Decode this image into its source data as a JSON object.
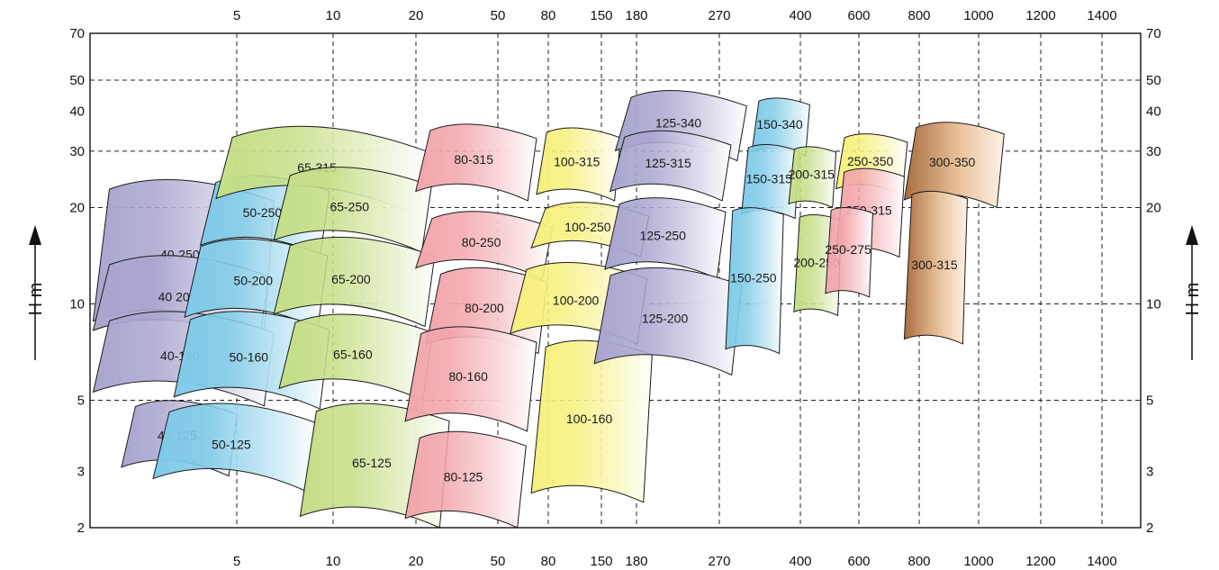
{
  "chart_data": {
    "type": "area",
    "y_axis_title": "H m",
    "x_tick_labels": [
      "5",
      "10",
      "20",
      "50",
      "80",
      "150",
      "180",
      "270",
      "400",
      "600",
      "800",
      "1000",
      "1200",
      "1400"
    ],
    "y_tick_labels": [
      "70",
      "50",
      "40",
      "30",
      "20",
      "10",
      "5",
      "3",
      "2"
    ],
    "y_scale": "log",
    "ylim": [
      2,
      70
    ],
    "grid": true,
    "colors": {
      "purple": "#a9a5cf",
      "blue": "#7fcbe8",
      "green": "#c5de86",
      "pink": "#f2a6ac",
      "yellow": "#f7f07c",
      "brown": "#a86d3f"
    },
    "regions": [
      {
        "label": "40-250",
        "color": "purple",
        "q": [
          0.3,
          17.5
        ],
        "h": [
          8.0,
          24.5
        ]
      },
      {
        "label": "40 200",
        "color": "purple",
        "q": [
          0.3,
          17.0
        ],
        "h": [
          7.5,
          14.2
        ]
      },
      {
        "label": "40-160",
        "color": "purple",
        "q": [
          0.3,
          17.5
        ],
        "h": [
          4.8,
          9.5
        ]
      },
      {
        "label": "40-125",
        "color": "purple",
        "q": [
          3.0,
          14.0
        ],
        "h": [
          2.9,
          5.0
        ]
      },
      {
        "label": "50-250",
        "color": "blue",
        "q": [
          10.5,
          22.8
        ],
        "h": [
          14.2,
          25.2
        ]
      },
      {
        "label": "50-200",
        "color": "blue",
        "q": [
          9.0,
          22.6
        ],
        "h": [
          8.4,
          16.0
        ]
      },
      {
        "label": "50-160",
        "color": "blue",
        "q": [
          8.0,
          22.8
        ],
        "h": [
          4.7,
          9.5
        ]
      },
      {
        "label": "50-125",
        "color": "blue",
        "q": [
          6.0,
          21.5
        ],
        "h": [
          2.6,
          4.9
        ]
      },
      {
        "label": "65-315",
        "color": "green",
        "q": [
          12.0,
          32.0
        ],
        "h": [
          19.0,
          36.0
        ]
      },
      {
        "label": "65-250",
        "color": "green",
        "q": [
          17.5,
          32.5
        ],
        "h": [
          14.5,
          26.8
        ]
      },
      {
        "label": "65-200",
        "color": "green",
        "q": [
          17.5,
          32.8
        ],
        "h": [
          8.5,
          16.2
        ]
      },
      {
        "label": "65-160",
        "color": "green",
        "q": [
          18.0,
          32.6
        ],
        "h": [
          5.0,
          9.3
        ]
      },
      {
        "label": "65-125",
        "color": "green",
        "q": [
          20.0,
          34.2
        ],
        "h": [
          2.0,
          4.9
        ]
      },
      {
        "label": "80-315",
        "color": "pink",
        "q": [
          31.0,
          42.5
        ],
        "h": [
          21.0,
          36.5
        ]
      },
      {
        "label": "80-250",
        "color": "pink",
        "q": [
          31.0,
          44.0
        ],
        "h": [
          12.0,
          19.5
        ]
      },
      {
        "label": "80-200",
        "color": "pink",
        "q": [
          32.0,
          43.5
        ],
        "h": [
          7.0,
          13.0
        ]
      },
      {
        "label": "80-160",
        "color": "pink",
        "q": [
          30.0,
          42.5
        ],
        "h": [
          4.0,
          8.5
        ]
      },
      {
        "label": "80-125",
        "color": "pink",
        "q": [
          30.0,
          41.5
        ],
        "h": [
          2.0,
          4.0
        ]
      },
      {
        "label": "100-315",
        "color": "yellow",
        "q": [
          42.5,
          50.5
        ],
        "h": [
          21.0,
          35.5
        ]
      },
      {
        "label": "100-250",
        "color": "yellow",
        "q": [
          42.0,
          53.2
        ],
        "h": [
          14.0,
          20.8
        ]
      },
      {
        "label": "100-200",
        "color": "yellow",
        "q": [
          40.0,
          53.0
        ],
        "h": [
          7.5,
          13.5
        ]
      },
      {
        "label": "100-160",
        "color": "yellow",
        "q": [
          42.0,
          53.5
        ],
        "h": [
          2.4,
          7.7
        ]
      },
      {
        "label": "125-340",
        "color": "purple",
        "q": [
          50.0,
          62.5
        ],
        "h": [
          28.0,
          46.5
        ]
      },
      {
        "label": "125-315",
        "color": "purple",
        "q": [
          49.5,
          61.0
        ],
        "h": [
          21.0,
          34.8
        ]
      },
      {
        "label": "125-250",
        "color": "purple",
        "q": [
          49.0,
          60.5
        ],
        "h": [
          12.0,
          21.5
        ]
      },
      {
        "label": "125-200",
        "color": "purple",
        "q": [
          48.0,
          62.0
        ],
        "h": [
          6.0,
          13.0
        ]
      },
      {
        "label": "150-340",
        "color": "blue",
        "q": [
          63.0,
          68.5
        ],
        "h": [
          29.0,
          44.0
        ]
      },
      {
        "label": "150-315",
        "color": "blue",
        "q": [
          62.0,
          67.5
        ],
        "h": [
          18.5,
          31.5
        ]
      },
      {
        "label": "150-250",
        "color": "blue",
        "q": [
          60.5,
          66.0
        ],
        "h": [
          7.0,
          20.0
        ]
      },
      {
        "label": "200-315",
        "color": "green",
        "q": [
          66.5,
          71.0
        ],
        "h": [
          20.0,
          31.0
        ]
      },
      {
        "label": "200-250",
        "color": "green",
        "q": [
          67.0,
          71.5
        ],
        "h": [
          9.2,
          19.0
        ]
      },
      {
        "label": "250-350",
        "color": "yellow",
        "q": [
          71.0,
          77.8
        ],
        "h": [
          22.0,
          34.0
        ]
      },
      {
        "label": "250-315",
        "color": "pink",
        "q": [
          71.0,
          77.5
        ],
        "h": [
          14.0,
          26.5
        ]
      },
      {
        "label": "250-275",
        "color": "pink",
        "q": [
          70.0,
          74.5
        ],
        "h": [
          10.5,
          20.0
        ]
      },
      {
        "label": "300-350",
        "color": "brown",
        "q": [
          77.5,
          87.0
        ],
        "h": [
          20.0,
          37.0
        ]
      },
      {
        "label": "300-315",
        "color": "brown",
        "q": [
          77.5,
          83.5
        ],
        "h": [
          7.5,
          22.5
        ]
      }
    ]
  }
}
